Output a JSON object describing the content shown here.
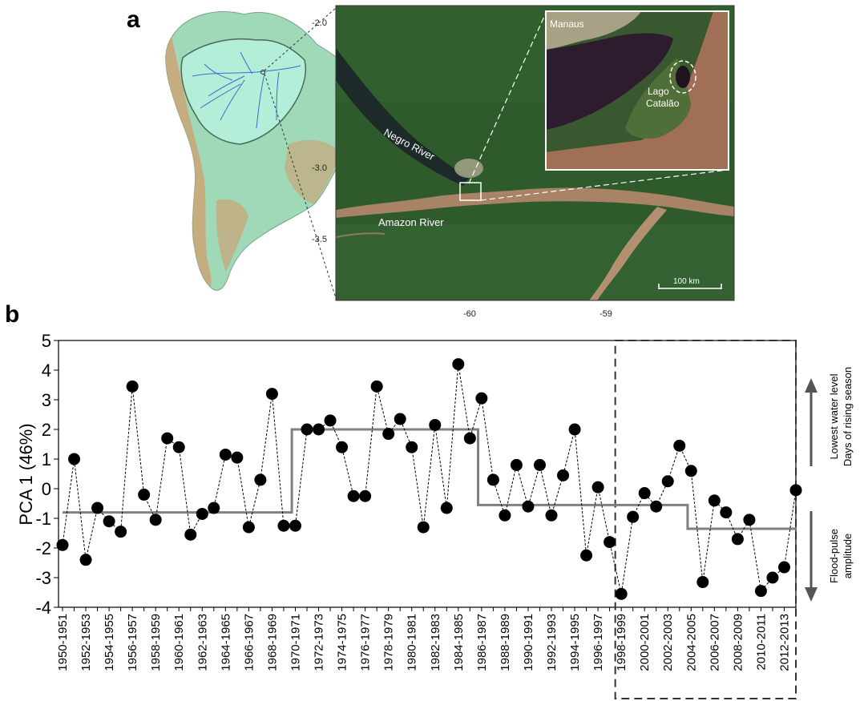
{
  "panel_a": {
    "letter": "a",
    "satellite": {
      "lat_ticks": [
        "-2.0",
        "-3.0",
        "-3.5"
      ],
      "lon_ticks": [
        "-60",
        "-59"
      ],
      "labels": {
        "negro": "Negro River",
        "amazon": "Amazon River",
        "scale": "100 km"
      }
    },
    "inset": {
      "manaus": "Manaus",
      "lago_line1": "Lago",
      "lago_line2": "Catalão"
    },
    "colors": {
      "forest": "#2f5a2c",
      "river_negro": "#1d2a2a",
      "river_amazon": "#a88366",
      "lake_dark": "#2c1c2e",
      "continent_green": "#8fd8b0",
      "continent_tan": "#c9a77a"
    }
  },
  "panel_b": {
    "letter": "b"
  },
  "chart_data": {
    "type": "line",
    "title": "",
    "xlabel": "",
    "ylabel": "PCA 1 (46%)",
    "ylim": [
      -4,
      5
    ],
    "y_ticks": [
      "5",
      "4",
      "3",
      "2",
      "1",
      "0",
      "-1",
      "-2",
      "-3",
      "-4"
    ],
    "grid": false,
    "x": [
      "1950-1951",
      "1951-1952",
      "1952-1953",
      "1953-1954",
      "1954-1955",
      "1955-1956",
      "1956-1957",
      "1957-1958",
      "1958-1959",
      "1959-1960",
      "1960-1961",
      "1961-1962",
      "1962-1963",
      "1963-1964",
      "1964-1965",
      "1965-1966",
      "1966-1967",
      "1967-1968",
      "1968-1969",
      "1969-1970",
      "1970-1971",
      "1971-1972",
      "1972-1973",
      "1973-1974",
      "1974-1975",
      "1975-1976",
      "1976-1977",
      "1977-1978",
      "1978-1979",
      "1979-1980",
      "1980-1981",
      "1981-1982",
      "1982-1983",
      "1983-1984",
      "1984-1985",
      "1985-1986",
      "1986-1987",
      "1987-1988",
      "1988-1989",
      "1989-1990",
      "1990-1991",
      "1991-1992",
      "1992-1993",
      "1993-1994",
      "1994-1995",
      "1995-1996",
      "1996-1997",
      "1997-1998",
      "1998-1999",
      "1999-2000",
      "2000-2001",
      "2001-2002",
      "2002-2003",
      "2003-2004",
      "2004-2005",
      "2005-2006",
      "2006-2007",
      "2007-2008",
      "2008-2009",
      "2009-2010",
      "2010-2011",
      "2011-2012",
      "2012-2013",
      "2013-2014"
    ],
    "x_tick_labels": [
      "1950-1951",
      "1952-1953",
      "1954-1955",
      "1956-1957",
      "1958-1959",
      "1960-1961",
      "1962-1963",
      "1964-1965",
      "1966-1967",
      "1968-1969",
      "1970-1971",
      "1972-1973",
      "1974-1975",
      "1976-1977",
      "1978-1979",
      "1980-1981",
      "1982-1983",
      "1984-1985",
      "1986-1987",
      "1988-1989",
      "1990-1991",
      "1992-1993",
      "1994-1995",
      "1996-1997",
      "1998-1999",
      "2000-2001",
      "2002-2003",
      "2004-2005",
      "2006-2007",
      "2008-2009",
      "2010-2011",
      "2012-2013"
    ],
    "series": [
      {
        "values": [
          -1.9,
          1.0,
          -2.4,
          -0.65,
          -1.1,
          -1.45,
          3.45,
          -0.2,
          -1.05,
          1.7,
          1.4,
          -1.55,
          -0.85,
          -0.65,
          1.15,
          1.05,
          -1.3,
          0.3,
          3.2,
          -1.25,
          -1.25,
          2.0,
          2.0,
          2.3,
          1.4,
          -0.25,
          -0.25,
          3.45,
          1.85,
          2.35,
          1.4,
          -1.3,
          2.15,
          -0.65,
          4.2,
          1.7,
          3.05,
          0.3,
          -0.9,
          0.8,
          -0.6,
          0.8,
          -0.9,
          0.45,
          2.0,
          -2.25,
          0.05,
          -1.8,
          -3.55,
          -0.95,
          -0.15,
          -0.6,
          0.25,
          1.45,
          0.6,
          -3.15,
          -0.4,
          -0.8,
          -1.7,
          -1.05,
          -3.45,
          -3.0,
          -2.65,
          -0.05
        ]
      }
    ],
    "step_means": [
      {
        "from": "1950-1951",
        "to": "1969-1970",
        "value": -0.8
      },
      {
        "from": "1970-1971",
        "to": "1985-1986",
        "value": 2.0
      },
      {
        "from": "1986-1987",
        "to": "2003-2004",
        "value": -0.55
      },
      {
        "from": "2004-2005",
        "to": "2013-2014",
        "value": -1.35
      }
    ],
    "highlight": {
      "from": "1999-2000",
      "to": "2013-2014"
    },
    "annotations": {
      "up_line1": "Lowest water level",
      "up_line2": "Days of rising season",
      "down_line1": "Flood-pulse",
      "down_line2": "amplitude"
    },
    "colors": {
      "points": "#000000",
      "step": "#808080",
      "arrow": "#555555"
    }
  }
}
